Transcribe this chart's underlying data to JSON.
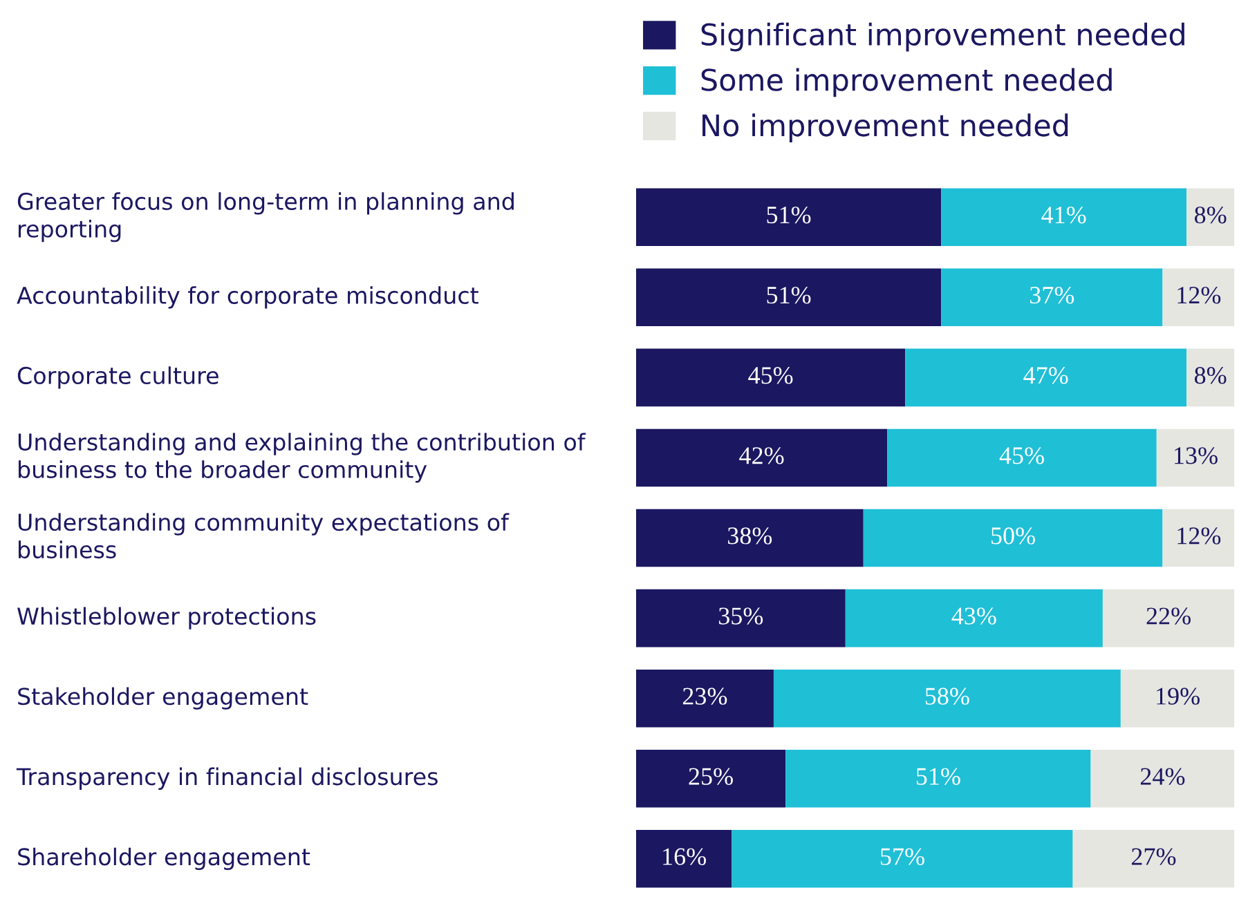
{
  "chart_data": {
    "type": "bar",
    "orientation": "horizontal",
    "stacked": true,
    "legend": "top",
    "categories": [
      "Greater focus on long-term in planning and reporting",
      "Accountability for corporate misconduct",
      "Corporate culture",
      "Understanding and explaining the contribution of business to the broader community",
      "Understanding community expectations of business",
      "Whistleblower protections",
      "Stakeholder engagement",
      "Transparency in financial disclosures",
      "Shareholder engagement"
    ],
    "series": [
      {
        "name": "Significant improvement needed",
        "color": "#1b1760",
        "values": [
          51,
          51,
          45,
          42,
          38,
          35,
          23,
          25,
          16
        ],
        "value_labels": [
          "51%",
          "51%",
          "45%",
          "42%",
          "38%",
          "35%",
          "23%",
          "25%",
          "16%"
        ]
      },
      {
        "name": "Some improvement needed",
        "color": "#1fbfd6",
        "values": [
          41,
          37,
          47,
          45,
          50,
          43,
          58,
          51,
          57
        ],
        "value_labels": [
          "41%",
          "37%",
          "47%",
          "45%",
          "50%",
          "43%",
          "58%",
          "51%",
          "57%"
        ]
      },
      {
        "name": "No improvement needed",
        "color": "#e6e6e1",
        "values": [
          8,
          12,
          8,
          13,
          12,
          22,
          19,
          24,
          27
        ],
        "value_labels": [
          "8%",
          "12%",
          "8%",
          "13%",
          "12%",
          "22%",
          "19%",
          "24%",
          "27%"
        ]
      }
    ]
  }
}
